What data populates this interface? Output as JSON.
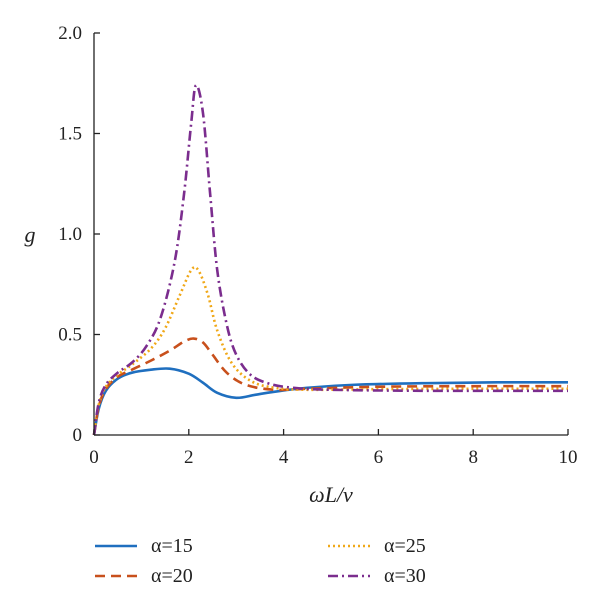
{
  "chart_data": {
    "type": "line",
    "xlabel": "ωL/ν",
    "ylabel": "g",
    "xlim": [
      0,
      10
    ],
    "ylim": [
      0,
      2.0
    ],
    "xticks": [
      "0",
      "2",
      "4",
      "6",
      "8",
      "10"
    ],
    "yticks": [
      "0",
      "0.5",
      "1.0",
      "1.5",
      "2.0"
    ],
    "grid": false,
    "legend_position": "bottom",
    "series": [
      {
        "name": "α=15",
        "color": "#1f6fbf",
        "dash": "solid",
        "points": [
          [
            0,
            0
          ],
          [
            0.1,
            0.13
          ],
          [
            0.25,
            0.22
          ],
          [
            0.5,
            0.28
          ],
          [
            0.8,
            0.31
          ],
          [
            1.2,
            0.325
          ],
          [
            1.6,
            0.33
          ],
          [
            2.0,
            0.305
          ],
          [
            2.3,
            0.26
          ],
          [
            2.6,
            0.21
          ],
          [
            3.0,
            0.185
          ],
          [
            3.4,
            0.2
          ],
          [
            3.8,
            0.215
          ],
          [
            4.5,
            0.235
          ],
          [
            5.5,
            0.25
          ],
          [
            7,
            0.258
          ],
          [
            8.5,
            0.262
          ],
          [
            10,
            0.262
          ]
        ]
      },
      {
        "name": "α=20",
        "color": "#c8501c",
        "dash": "dashed",
        "points": [
          [
            0,
            0
          ],
          [
            0.1,
            0.14
          ],
          [
            0.25,
            0.23
          ],
          [
            0.5,
            0.29
          ],
          [
            0.8,
            0.325
          ],
          [
            1.2,
            0.37
          ],
          [
            1.6,
            0.42
          ],
          [
            1.9,
            0.465
          ],
          [
            2.1,
            0.48
          ],
          [
            2.3,
            0.46
          ],
          [
            2.5,
            0.4
          ],
          [
            2.8,
            0.31
          ],
          [
            3.2,
            0.25
          ],
          [
            3.8,
            0.225
          ],
          [
            4.5,
            0.23
          ],
          [
            6,
            0.24
          ],
          [
            8,
            0.243
          ],
          [
            10,
            0.243
          ]
        ]
      },
      {
        "name": "α=25",
        "color": "#f0a818",
        "dash": "dotted",
        "points": [
          [
            0,
            0
          ],
          [
            0.1,
            0.15
          ],
          [
            0.25,
            0.24
          ],
          [
            0.5,
            0.3
          ],
          [
            0.8,
            0.35
          ],
          [
            1.2,
            0.43
          ],
          [
            1.5,
            0.53
          ],
          [
            1.8,
            0.69
          ],
          [
            2.05,
            0.82
          ],
          [
            2.2,
            0.82
          ],
          [
            2.4,
            0.7
          ],
          [
            2.6,
            0.52
          ],
          [
            2.9,
            0.36
          ],
          [
            3.3,
            0.27
          ],
          [
            3.8,
            0.235
          ],
          [
            4.5,
            0.225
          ],
          [
            6,
            0.228
          ],
          [
            8,
            0.23
          ],
          [
            10,
            0.23
          ]
        ]
      },
      {
        "name": "α=30",
        "color": "#7b2d8e",
        "dash": "dashdot",
        "points": [
          [
            0,
            0
          ],
          [
            0.1,
            0.16
          ],
          [
            0.25,
            0.25
          ],
          [
            0.5,
            0.31
          ],
          [
            0.8,
            0.36
          ],
          [
            1.1,
            0.44
          ],
          [
            1.4,
            0.58
          ],
          [
            1.7,
            0.86
          ],
          [
            1.9,
            1.2
          ],
          [
            2.05,
            1.55
          ],
          [
            2.15,
            1.74
          ],
          [
            2.3,
            1.6
          ],
          [
            2.45,
            1.2
          ],
          [
            2.6,
            0.82
          ],
          [
            2.8,
            0.55
          ],
          [
            3.0,
            0.4
          ],
          [
            3.3,
            0.3
          ],
          [
            3.7,
            0.255
          ],
          [
            4.2,
            0.235
          ],
          [
            5,
            0.225
          ],
          [
            7,
            0.22
          ],
          [
            10,
            0.22
          ]
        ]
      }
    ]
  }
}
